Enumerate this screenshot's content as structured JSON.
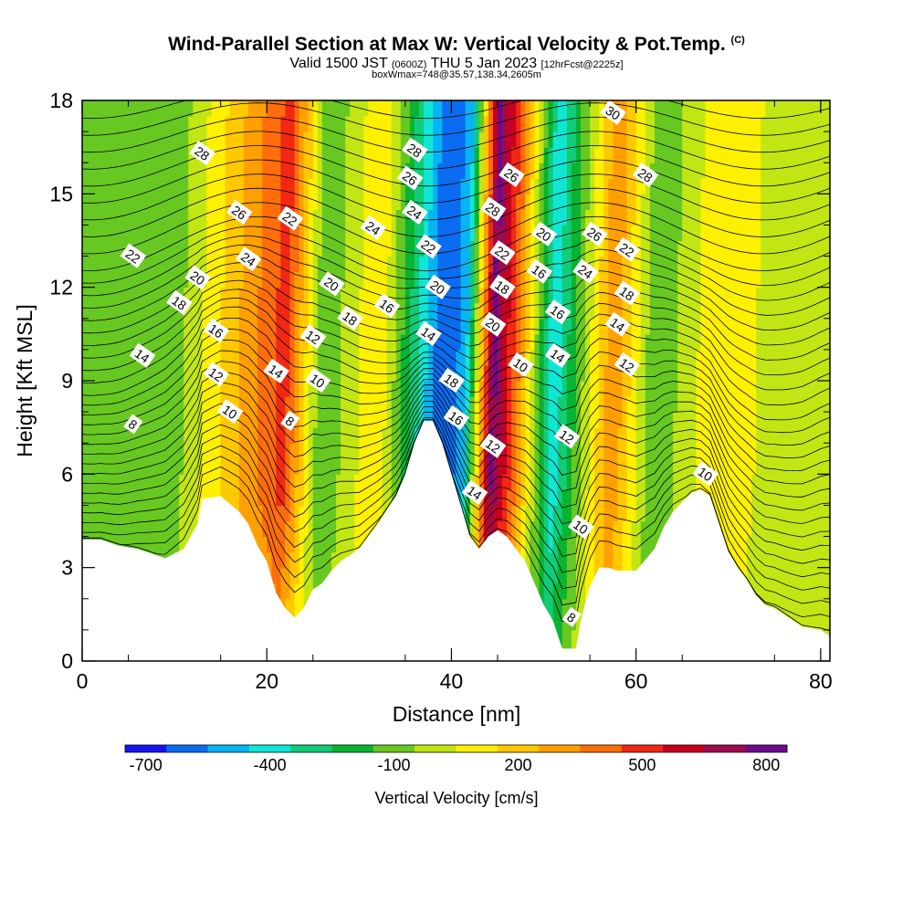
{
  "title": {
    "main": "Wind-Parallel Section at Max W: Vertical Velocity & Pot.Temp.",
    "copyright": "(C)",
    "valid_prefix": "Valid 1500 JST",
    "valid_utc": "(0600Z)",
    "valid_date": "THU 5 Jan 2023",
    "fcst": "[12hrFcst@2225z]",
    "subtitle": "boxWmax=748@35.57,138.34,2605m"
  },
  "chart_data": {
    "type": "heatmap",
    "xlabel": "Distance [nm]",
    "ylabel": "Height [Kft MSL]",
    "xlim": [
      0,
      81
    ],
    "ylim": [
      0,
      18
    ],
    "x_ticks": [
      "0",
      "20",
      "40",
      "60",
      "80"
    ],
    "y_ticks": [
      "0",
      "3",
      "6",
      "9",
      "12",
      "15",
      "18"
    ],
    "colorbar": {
      "label": "Vertical Velocity [cm/s]",
      "tick_labels": [
        "-700",
        "-400",
        "-100",
        "200",
        "500",
        "800"
      ],
      "tick_values": [
        -700,
        -400,
        -100,
        200,
        500,
        800
      ],
      "range": [
        -750,
        850
      ],
      "colors": [
        "#1414f0",
        "#0a6cf0",
        "#06b4f4",
        "#10e6d6",
        "#12cc78",
        "#08b432",
        "#68c822",
        "#c2e614",
        "#fff000",
        "#ffc800",
        "#ffa000",
        "#ff6e0a",
        "#f02814",
        "#c8001e",
        "#9c0a50",
        "#6e0a8c"
      ]
    },
    "terrain_kft": [
      [
        0,
        3.9
      ],
      [
        2,
        3.9
      ],
      [
        4,
        3.7
      ],
      [
        6,
        3.6
      ],
      [
        9,
        3.3
      ],
      [
        11,
        3.6
      ],
      [
        12.5,
        4.4
      ],
      [
        13,
        5.2
      ],
      [
        15,
        5.3
      ],
      [
        17,
        4.8
      ],
      [
        18,
        4.4
      ],
      [
        19,
        3.7
      ],
      [
        20,
        3.2
      ],
      [
        21,
        2.2
      ],
      [
        22,
        1.7
      ],
      [
        23,
        1.4
      ],
      [
        24,
        1.7
      ],
      [
        25,
        2.3
      ],
      [
        26,
        2.5
      ],
      [
        27,
        2.9
      ],
      [
        28,
        3.2
      ],
      [
        30,
        3.6
      ],
      [
        31,
        4.0
      ],
      [
        32,
        4.4
      ],
      [
        34,
        5.3
      ],
      [
        35,
        6.0
      ],
      [
        36,
        7.0
      ],
      [
        37,
        7.7
      ],
      [
        38,
        7.7
      ],
      [
        39,
        7.0
      ],
      [
        40,
        6.0
      ],
      [
        41,
        5.0
      ],
      [
        42,
        4.0
      ],
      [
        43,
        3.6
      ],
      [
        44,
        4.0
      ],
      [
        45,
        4.2
      ],
      [
        46,
        4.0
      ],
      [
        47,
        3.6
      ],
      [
        48,
        3.2
      ],
      [
        49,
        2.5
      ],
      [
        50,
        1.8
      ],
      [
        51,
        1.3
      ],
      [
        52,
        0.4
      ],
      [
        53.5,
        0.4
      ],
      [
        54,
        1.3
      ],
      [
        55,
        2.4
      ],
      [
        56,
        3.0
      ],
      [
        57,
        3.0
      ],
      [
        58,
        2.9
      ],
      [
        60,
        2.9
      ],
      [
        62,
        3.6
      ],
      [
        63,
        4.3
      ],
      [
        64,
        4.8
      ],
      [
        66,
        5.4
      ],
      [
        67,
        5.5
      ],
      [
        68,
        5.3
      ],
      [
        69,
        4.4
      ],
      [
        70,
        3.5
      ],
      [
        71,
        3.0
      ],
      [
        72,
        2.6
      ],
      [
        73,
        2.1
      ],
      [
        74,
        1.8
      ],
      [
        75,
        1.7
      ],
      [
        76,
        1.5
      ],
      [
        77,
        1.3
      ],
      [
        78,
        1.1
      ],
      [
        80,
        1.0
      ],
      [
        81,
        0.8
      ]
    ],
    "velocity_field_cms": [
      {
        "x": 10,
        "w": -100
      },
      {
        "x": 22,
        "w": 500
      },
      {
        "x": 26,
        "w": -150
      },
      {
        "x": 32,
        "w": 150
      },
      {
        "x": 39,
        "w": -650
      },
      {
        "x": 41.5,
        "w": -500
      },
      {
        "x": 44.5,
        "w": 800
      },
      {
        "x": 47,
        "w": 400
      },
      {
        "x": 51,
        "w": -450
      },
      {
        "x": 57.5,
        "w": 350
      },
      {
        "x": 62,
        "w": -150
      },
      {
        "x": 69,
        "w": 150
      },
      {
        "x": 77,
        "w": -50
      }
    ],
    "theta_labels": [
      {
        "x": 13,
        "y": 16.3,
        "text": "28"
      },
      {
        "x": 5.5,
        "y": 13.0,
        "text": "22"
      },
      {
        "x": 17,
        "y": 14.4,
        "text": "26"
      },
      {
        "x": 12.5,
        "y": 12.3,
        "text": "20"
      },
      {
        "x": 18,
        "y": 12.9,
        "text": "24"
      },
      {
        "x": 22.5,
        "y": 14.2,
        "text": "22"
      },
      {
        "x": 10.5,
        "y": 11.5,
        "text": "18"
      },
      {
        "x": 14.5,
        "y": 10.6,
        "text": "16"
      },
      {
        "x": 6.5,
        "y": 9.8,
        "text": "14"
      },
      {
        "x": 14.5,
        "y": 9.2,
        "text": "12"
      },
      {
        "x": 16,
        "y": 8.0,
        "text": "10"
      },
      {
        "x": 5.5,
        "y": 7.6,
        "text": "8"
      },
      {
        "x": 21,
        "y": 9.3,
        "text": "14"
      },
      {
        "x": 22.5,
        "y": 7.7,
        "text": "8"
      },
      {
        "x": 25,
        "y": 10.4,
        "text": "12"
      },
      {
        "x": 25.5,
        "y": 9.0,
        "text": "10"
      },
      {
        "x": 27,
        "y": 12.1,
        "text": "20"
      },
      {
        "x": 29,
        "y": 11.0,
        "text": "18"
      },
      {
        "x": 33,
        "y": 11.4,
        "text": "16"
      },
      {
        "x": 31.5,
        "y": 13.9,
        "text": "24"
      },
      {
        "x": 36,
        "y": 16.4,
        "text": "28"
      },
      {
        "x": 35.5,
        "y": 15.5,
        "text": "26"
      },
      {
        "x": 36,
        "y": 14.4,
        "text": "24"
      },
      {
        "x": 37.5,
        "y": 13.3,
        "text": "22"
      },
      {
        "x": 38.5,
        "y": 12.0,
        "text": "20"
      },
      {
        "x": 37.5,
        "y": 10.5,
        "text": "14"
      },
      {
        "x": 40,
        "y": 9.0,
        "text": "18"
      },
      {
        "x": 40.5,
        "y": 7.8,
        "text": "16"
      },
      {
        "x": 42.5,
        "y": 5.4,
        "text": "14"
      },
      {
        "x": 44.5,
        "y": 6.9,
        "text": "12"
      },
      {
        "x": 44.5,
        "y": 10.8,
        "text": "20"
      },
      {
        "x": 45.5,
        "y": 12.0,
        "text": "18"
      },
      {
        "x": 45.5,
        "y": 13.1,
        "text": "22"
      },
      {
        "x": 44.5,
        "y": 14.5,
        "text": "28"
      },
      {
        "x": 46.5,
        "y": 15.6,
        "text": "26"
      },
      {
        "x": 47.5,
        "y": 9.5,
        "text": "10"
      },
      {
        "x": 50,
        "y": 13.7,
        "text": "20"
      },
      {
        "x": 49.5,
        "y": 12.5,
        "text": "16"
      },
      {
        "x": 51.5,
        "y": 11.2,
        "text": "16"
      },
      {
        "x": 51.5,
        "y": 9.8,
        "text": "14"
      },
      {
        "x": 52.5,
        "y": 7.2,
        "text": "12"
      },
      {
        "x": 54,
        "y": 4.3,
        "text": "10"
      },
      {
        "x": 53,
        "y": 1.4,
        "text": "8"
      },
      {
        "x": 55.5,
        "y": 13.7,
        "text": "26"
      },
      {
        "x": 54.5,
        "y": 12.5,
        "text": "24"
      },
      {
        "x": 59,
        "y": 13.2,
        "text": "22"
      },
      {
        "x": 59,
        "y": 11.8,
        "text": "18"
      },
      {
        "x": 58,
        "y": 10.8,
        "text": "14"
      },
      {
        "x": 59,
        "y": 9.5,
        "text": "12"
      },
      {
        "x": 61,
        "y": 15.6,
        "text": "28"
      },
      {
        "x": 57.5,
        "y": 17.6,
        "text": "30"
      },
      {
        "x": 67.5,
        "y": 6.0,
        "text": "10"
      }
    ]
  }
}
